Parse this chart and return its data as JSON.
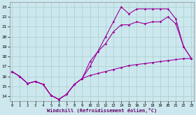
{
  "xlabel": "Windchill (Refroidissement éolien,°C)",
  "bg_color": "#cce8ee",
  "grid_color": "#a8cece",
  "line_color": "#990099",
  "xlim_min": -0.3,
  "xlim_max": 23.3,
  "ylim_min": 13.5,
  "ylim_max": 23.5,
  "yticks": [
    14,
    15,
    16,
    17,
    18,
    19,
    20,
    21,
    22,
    23
  ],
  "xticks": [
    0,
    1,
    2,
    3,
    4,
    5,
    6,
    7,
    8,
    9,
    10,
    11,
    12,
    13,
    14,
    15,
    16,
    17,
    18,
    19,
    20,
    21,
    22,
    23
  ],
  "s1_x": [
    0,
    1,
    2,
    3,
    4,
    5,
    6,
    7,
    8,
    9,
    10,
    11,
    12,
    13,
    14,
    15,
    16,
    17,
    18,
    19,
    20,
    21,
    22,
    23
  ],
  "s1_y": [
    16.5,
    16.0,
    15.3,
    15.5,
    15.2,
    14.1,
    13.7,
    14.2,
    15.2,
    15.8,
    16.1,
    16.3,
    16.5,
    16.7,
    16.9,
    17.1,
    17.2,
    17.3,
    17.4,
    17.5,
    17.6,
    17.7,
    17.8,
    17.8
  ],
  "s2_x": [
    0,
    1,
    2,
    3,
    4,
    5,
    6,
    7,
    8,
    9,
    10,
    11,
    12,
    13,
    14,
    15,
    16,
    17,
    18,
    19,
    20,
    21,
    22,
    23
  ],
  "s2_y": [
    16.5,
    16.0,
    15.3,
    15.5,
    15.2,
    14.1,
    13.7,
    14.2,
    15.2,
    15.8,
    17.5,
    18.5,
    19.3,
    20.5,
    21.2,
    21.2,
    21.5,
    21.3,
    21.5,
    21.5,
    22.0,
    21.3,
    19.0,
    17.8
  ],
  "s3_x": [
    0,
    1,
    2,
    3,
    4,
    5,
    6,
    7,
    8,
    9,
    10,
    11,
    12,
    13,
    14,
    15,
    16,
    17,
    18,
    19,
    20,
    21,
    22,
    23
  ],
  "s3_y": [
    16.5,
    16.0,
    15.3,
    15.5,
    15.2,
    14.1,
    13.7,
    14.2,
    15.2,
    15.8,
    17.0,
    18.5,
    20.0,
    21.5,
    23.0,
    22.3,
    22.8,
    22.8,
    22.8,
    22.8,
    22.8,
    21.8,
    19.0,
    17.8
  ],
  "marker": "D",
  "markersize": 1.8,
  "linewidth": 0.8
}
